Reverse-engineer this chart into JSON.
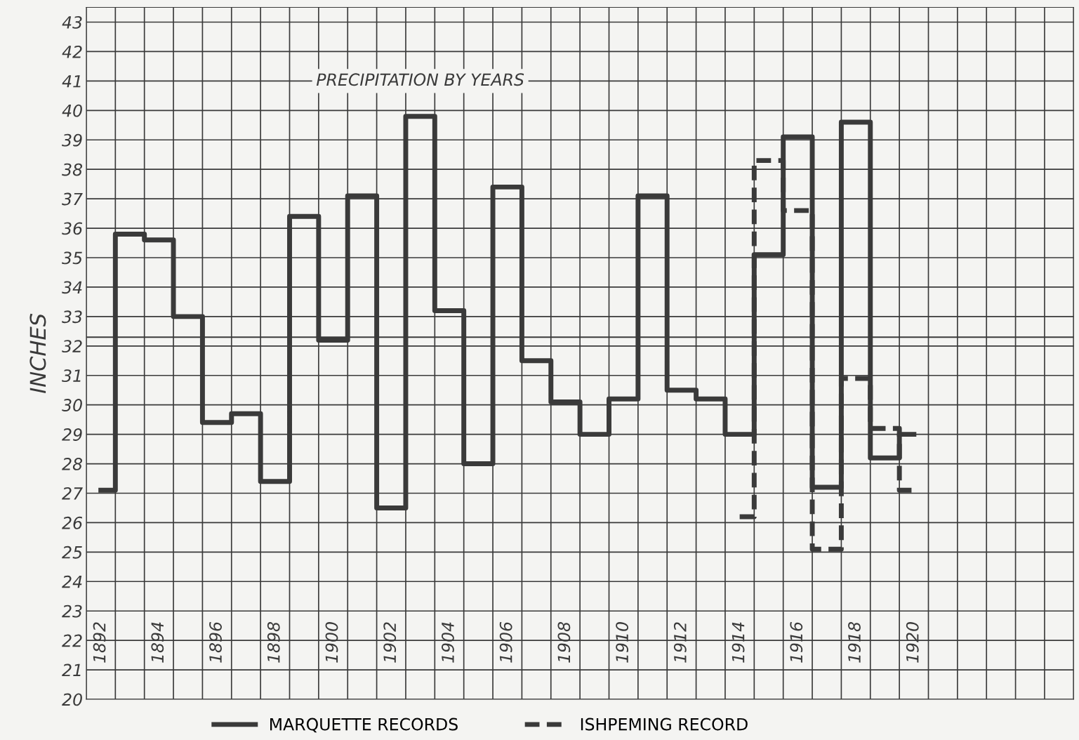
{
  "chart_data": {
    "type": "step",
    "title": "PRECIPITATION BY YEARS",
    "ylabel": "INCHES",
    "x": [
      1892,
      1893,
      1894,
      1895,
      1896,
      1897,
      1898,
      1899,
      1900,
      1901,
      1902,
      1903,
      1904,
      1905,
      1906,
      1907,
      1908,
      1909,
      1910,
      1911,
      1912,
      1913,
      1914,
      1915,
      1916,
      1917,
      1918,
      1919,
      1920
    ],
    "series": [
      {
        "name": "MARQUETTE RECORDS",
        "color": "#3a3a3a",
        "line_style": "solid",
        "values": [
          27.1,
          35.8,
          35.6,
          33.0,
          29.4,
          29.7,
          27.4,
          36.4,
          32.2,
          37.1,
          26.5,
          39.8,
          33.2,
          28.0,
          37.4,
          31.5,
          30.1,
          29.0,
          30.2,
          37.1,
          30.5,
          30.2,
          29.0,
          35.1,
          39.1,
          27.2,
          39.6,
          28.2,
          29.0
        ]
      },
      {
        "name": "ISHPEMING RECORD",
        "color": "#3a3a3a",
        "line_style": "dashed",
        "x": [
          1914,
          1915,
          1916,
          1917,
          1918,
          1919,
          1920
        ],
        "values": [
          26.2,
          38.3,
          36.6,
          25.1,
          30.9,
          29.2,
          27.1
        ]
      }
    ],
    "ref_lines": [
      {
        "axis": "y",
        "value": 32.3,
        "color": "#3a3a3a",
        "line_style": "solid"
      }
    ],
    "xlim": [
      1891.5,
      1925.5
    ],
    "xticks": [
      1892,
      1894,
      1896,
      1898,
      1900,
      1902,
      1904,
      1906,
      1908,
      1910,
      1912,
      1914,
      1916,
      1918,
      1920
    ],
    "ylim": [
      20,
      43.5
    ],
    "yticks": [
      20,
      21,
      22,
      23,
      24,
      25,
      26,
      27,
      28,
      29,
      30,
      31,
      32,
      33,
      34,
      35,
      36,
      37,
      38,
      39,
      40,
      41,
      42,
      43
    ],
    "grid": true,
    "legend": "bottom"
  }
}
